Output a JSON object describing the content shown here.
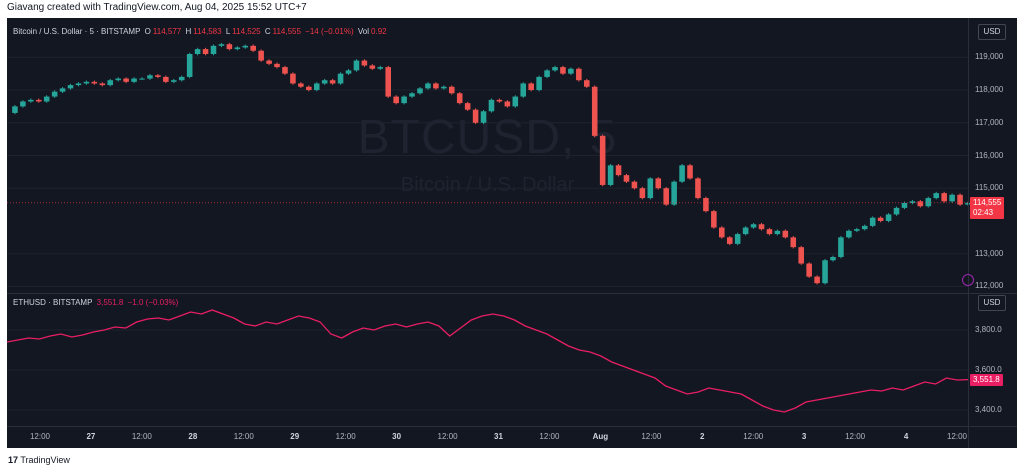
{
  "header": {
    "credit": "Giavang created with TradingView.com, Aug 04, 2025 15:52 UTC+7"
  },
  "btc": {
    "legend_title": "Bitcoin / U.S. Dollar · 5 · BITSTAMP",
    "o_label": "O",
    "o_value": "114,577",
    "h_label": "H",
    "h_value": "114,583",
    "l_label": "L",
    "l_value": "114,525",
    "c_label": "C",
    "c_value": "114,555",
    "change": "−14 (−0.01%)",
    "vol_label": "Vol",
    "vol_value": "0.92",
    "watermark_symbol": "BTCUSD, 5",
    "watermark_name": "Bitcoin / U.S. Dollar",
    "currency": "USD",
    "last_price": "114,555",
    "countdown": "02:43"
  },
  "eth": {
    "legend_title": "ETHUSD · BITSTAMP",
    "value": "3,551.8",
    "change": "−1.0 (−0.03%)",
    "currency": "USD",
    "last_price": "3,551.8"
  },
  "time_axis": [
    "12:00",
    "27",
    "12:00",
    "28",
    "12:00",
    "29",
    "12:00",
    "30",
    "12:00",
    "31",
    "12:00",
    "Aug",
    "12:00",
    "2",
    "12:00",
    "3",
    "12:00",
    "4",
    "12:00"
  ],
  "footer": {
    "brand": "TradingView"
  },
  "colors": {
    "up": "#26a69a",
    "down": "#ef5350",
    "eth_line": "#e91e63",
    "background": "#131722"
  },
  "chart_data": [
    {
      "type": "line",
      "title": "Bitcoin / U.S. Dollar · 5 · BITSTAMP",
      "series": [
        {
          "name": "BTCUSD",
          "values": [
            117300,
            117500,
            117650,
            117700,
            117650,
            117800,
            117950,
            118050,
            118150,
            118200,
            118250,
            118200,
            118150,
            118300,
            118350,
            118250,
            118350,
            118350,
            118450,
            118400,
            118250,
            118300,
            118400,
            119100,
            119250,
            119100,
            119350,
            119400,
            119250,
            119300,
            119350,
            119200,
            118900,
            118800,
            118700,
            118500,
            118200,
            118100,
            118000,
            118200,
            118300,
            118200,
            118500,
            118600,
            118900,
            118750,
            118650,
            118700,
            117800,
            117600,
            117800,
            117900,
            118050,
            118200,
            118050,
            118100,
            117900,
            117600,
            117400,
            117000,
            117350,
            117700,
            117650,
            117500,
            117800,
            118200,
            118000,
            118400,
            118600,
            118700,
            118500,
            118650,
            118300,
            118100,
            116600,
            115100,
            115700,
            115400,
            115200,
            115000,
            114700,
            115300,
            115000,
            114500,
            115200,
            115700,
            115300,
            114700,
            114300,
            113800,
            113500,
            113300,
            113600,
            113800,
            113900,
            113750,
            113600,
            113700,
            113500,
            113200,
            112700,
            112300,
            112100,
            112800,
            112900,
            113500,
            113700,
            113750,
            113850,
            114100,
            114000,
            114200,
            114400,
            114550,
            114600,
            114450,
            114700,
            114850,
            114600,
            114800,
            114500,
            114555
          ]
        }
      ],
      "y_ticks": [
        "119,000",
        "118,000",
        "117,000",
        "116,000",
        "115,000",
        "113,000",
        "112,000"
      ],
      "ylim": [
        111800,
        120200
      ]
    },
    {
      "type": "line",
      "title": "ETHUSD · BITSTAMP",
      "series": [
        {
          "name": "ETHUSD",
          "values": [
            3740,
            3750,
            3760,
            3755,
            3770,
            3780,
            3765,
            3775,
            3790,
            3800,
            3815,
            3810,
            3840,
            3855,
            3860,
            3850,
            3870,
            3890,
            3880,
            3900,
            3880,
            3860,
            3830,
            3820,
            3840,
            3830,
            3850,
            3870,
            3860,
            3840,
            3780,
            3760,
            3790,
            3810,
            3800,
            3820,
            3830,
            3815,
            3830,
            3840,
            3820,
            3770,
            3810,
            3850,
            3870,
            3880,
            3870,
            3850,
            3820,
            3800,
            3780,
            3750,
            3720,
            3700,
            3690,
            3670,
            3640,
            3620,
            3600,
            3580,
            3560,
            3520,
            3500,
            3480,
            3490,
            3510,
            3500,
            3490,
            3480,
            3450,
            3420,
            3400,
            3390,
            3410,
            3440,
            3450,
            3460,
            3470,
            3480,
            3490,
            3500,
            3495,
            3510,
            3500,
            3520,
            3540,
            3530,
            3560,
            3550,
            3551.8
          ]
        }
      ],
      "y_ticks": [
        "3,800.0",
        "3,600.0",
        "3,400.0"
      ],
      "ylim": [
        3320,
        3980
      ]
    }
  ]
}
